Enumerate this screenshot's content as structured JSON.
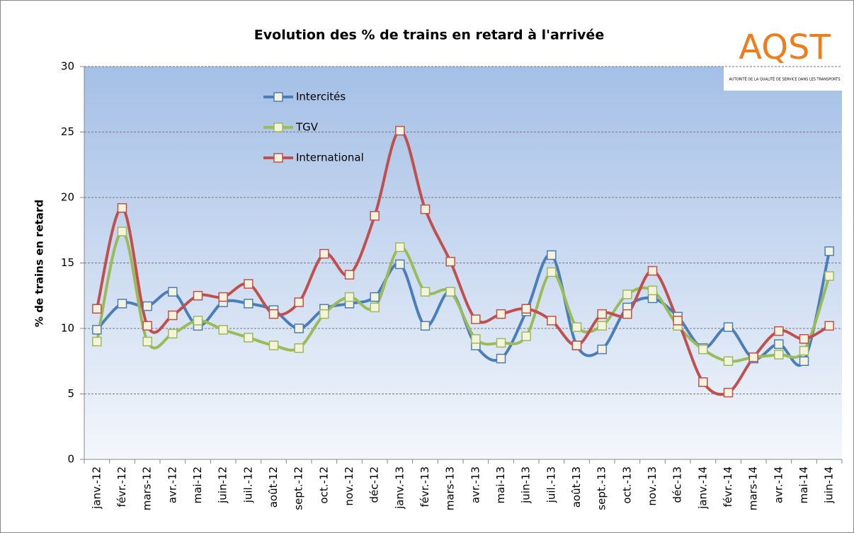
{
  "chart_data": {
    "type": "line",
    "title": "Evolution des % de trains en retard à l'arrivée",
    "y_label": "% de trains en retard",
    "logo": {
      "name": "AQST",
      "subtitle": "AUTORITÉ DE LA QUALITÉ DE SERVICE DANS LES TRANSPORTS"
    },
    "categories": [
      "janv.-12",
      "févr.-12",
      "mars-12",
      "avr.-12",
      "mai-12",
      "juin-12",
      "juil.-12",
      "août-12",
      "sept.-12",
      "oct.-12",
      "nov.-12",
      "déc-12",
      "janv.-13",
      "févr.-13",
      "mars-13",
      "avr.-13",
      "mai-13",
      "juin-13",
      "juil.-13",
      "août-13",
      "sept.-13",
      "oct.-13",
      "nov.-13",
      "déc-13",
      "janv.-14",
      "févr.-14",
      "mars-14",
      "avr.-14",
      "mai-14",
      "juin-14"
    ],
    "series": [
      {
        "name": "Intercités",
        "color": "#4a7ebb",
        "values": [
          9.9,
          11.9,
          11.7,
          12.8,
          10.2,
          12.0,
          11.9,
          11.4,
          10.0,
          11.5,
          11.9,
          12.4,
          14.9,
          10.2,
          12.8,
          8.7,
          7.7,
          11.3,
          15.6,
          8.7,
          8.4,
          11.6,
          12.3,
          10.9,
          8.5,
          10.1,
          7.7,
          8.8,
          7.5,
          15.9
        ]
      },
      {
        "name": "TGV",
        "color": "#9bbb59",
        "values": [
          9.0,
          17.4,
          9.0,
          9.6,
          10.6,
          9.9,
          9.3,
          8.7,
          8.5,
          11.1,
          12.4,
          11.6,
          16.2,
          12.8,
          12.8,
          9.2,
          8.9,
          9.4,
          14.3,
          10.1,
          10.2,
          12.6,
          12.9,
          10.2,
          8.4,
          7.5,
          7.8,
          8.0,
          8.3,
          14.0
        ]
      },
      {
        "name": "International",
        "color": "#c0504d",
        "values": [
          11.5,
          19.2,
          10.2,
          11.0,
          12.5,
          12.4,
          13.4,
          11.1,
          12.0,
          15.7,
          14.1,
          18.6,
          25.1,
          19.1,
          15.1,
          10.7,
          11.1,
          11.5,
          10.6,
          8.7,
          11.1,
          11.1,
          14.4,
          10.6,
          5.9,
          5.1,
          7.8,
          9.8,
          9.2,
          10.2
        ]
      }
    ],
    "ylim": [
      0,
      30
    ],
    "yticks": [
      0,
      5,
      10,
      15,
      20,
      25,
      30
    ],
    "grid": true,
    "smooth": true
  }
}
